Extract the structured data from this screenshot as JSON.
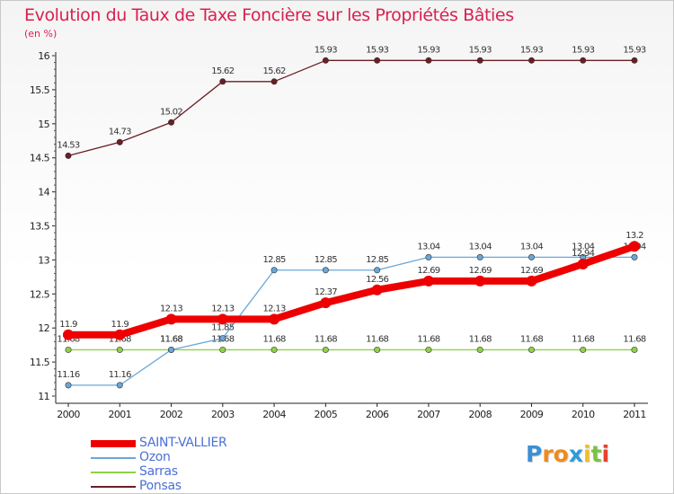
{
  "chart_data": {
    "type": "line",
    "title": "Evolution du Taux de Taxe Foncière sur les Propriétés Bâties",
    "subtitle": "(en %)",
    "x": [
      "2000",
      "2001",
      "2002",
      "2003",
      "2004",
      "2005",
      "2006",
      "2007",
      "2008",
      "2009",
      "2010",
      "2011"
    ],
    "ylim": [
      11,
      16
    ],
    "yticks": [
      "11",
      "11.5",
      "12",
      "12.5",
      "13",
      "13.5",
      "14",
      "14.5",
      "15",
      "15.5",
      "16"
    ],
    "grid": false,
    "legend_position": "bottom-left",
    "series": [
      {
        "name": "Ponsas",
        "color": "#6b1e24",
        "values": [
          14.53,
          14.73,
          15.02,
          15.62,
          15.62,
          15.93,
          15.93,
          15.93,
          15.93,
          15.93,
          15.93,
          15.93
        ],
        "labels": [
          "14.53",
          "14.73",
          "15.02",
          "15.62",
          "15.62",
          "15.93",
          "15.93",
          "15.93",
          "15.93",
          "15.93",
          "15.93",
          "15.93"
        ]
      },
      {
        "name": "Sarras",
        "color": "#8fd147",
        "values": [
          11.68,
          11.68,
          11.68,
          11.68,
          11.68,
          11.68,
          11.68,
          11.68,
          11.68,
          11.68,
          11.68,
          11.68
        ],
        "labels": [
          "11.68",
          "11.68",
          "11.68",
          "11.68",
          "11.68",
          "11.68",
          "11.68",
          "11.68",
          "11.68",
          "11.68",
          "11.68",
          "11.68"
        ]
      },
      {
        "name": "Ozon",
        "color": "#6aa7d8",
        "values": [
          11.16,
          11.16,
          11.68,
          11.85,
          12.85,
          12.85,
          12.85,
          13.04,
          13.04,
          13.04,
          13.04,
          13.04
        ],
        "labels": [
          "11.16",
          "11.16",
          "11.68",
          "11.85",
          "12.85",
          "12.85",
          "12.85",
          "13.04",
          "13.04",
          "13.04",
          "13.04",
          "13.04"
        ]
      },
      {
        "name": "SAINT-VALLIER",
        "color": "#ee0000",
        "values": [
          11.9,
          11.9,
          12.13,
          12.13,
          12.13,
          12.37,
          12.56,
          12.69,
          12.69,
          12.69,
          12.94,
          13.2
        ],
        "labels": [
          "11.9",
          "11.9",
          "12.13",
          "12.13",
          "12.13",
          "12.37",
          "12.56",
          "12.69",
          "12.69",
          "12.69",
          "12.94",
          "13.2"
        ]
      }
    ]
  },
  "legend": {
    "items": [
      {
        "name": "SAINT-VALLIER",
        "color": "#ee0000"
      },
      {
        "name": "Ozon",
        "color": "#6aa7d8"
      },
      {
        "name": "Sarras",
        "color": "#8fd147"
      },
      {
        "name": "Ponsas",
        "color": "#6b1e24"
      }
    ]
  },
  "brand": {
    "letters": [
      "P",
      "r",
      "o",
      "x",
      "i",
      "t",
      "i"
    ],
    "colors": [
      "#3c8fd6",
      "#f08a1d",
      "#f08a1d",
      "#2e9bd8",
      "#f0c01d",
      "#7cc242",
      "#e8412c"
    ]
  }
}
